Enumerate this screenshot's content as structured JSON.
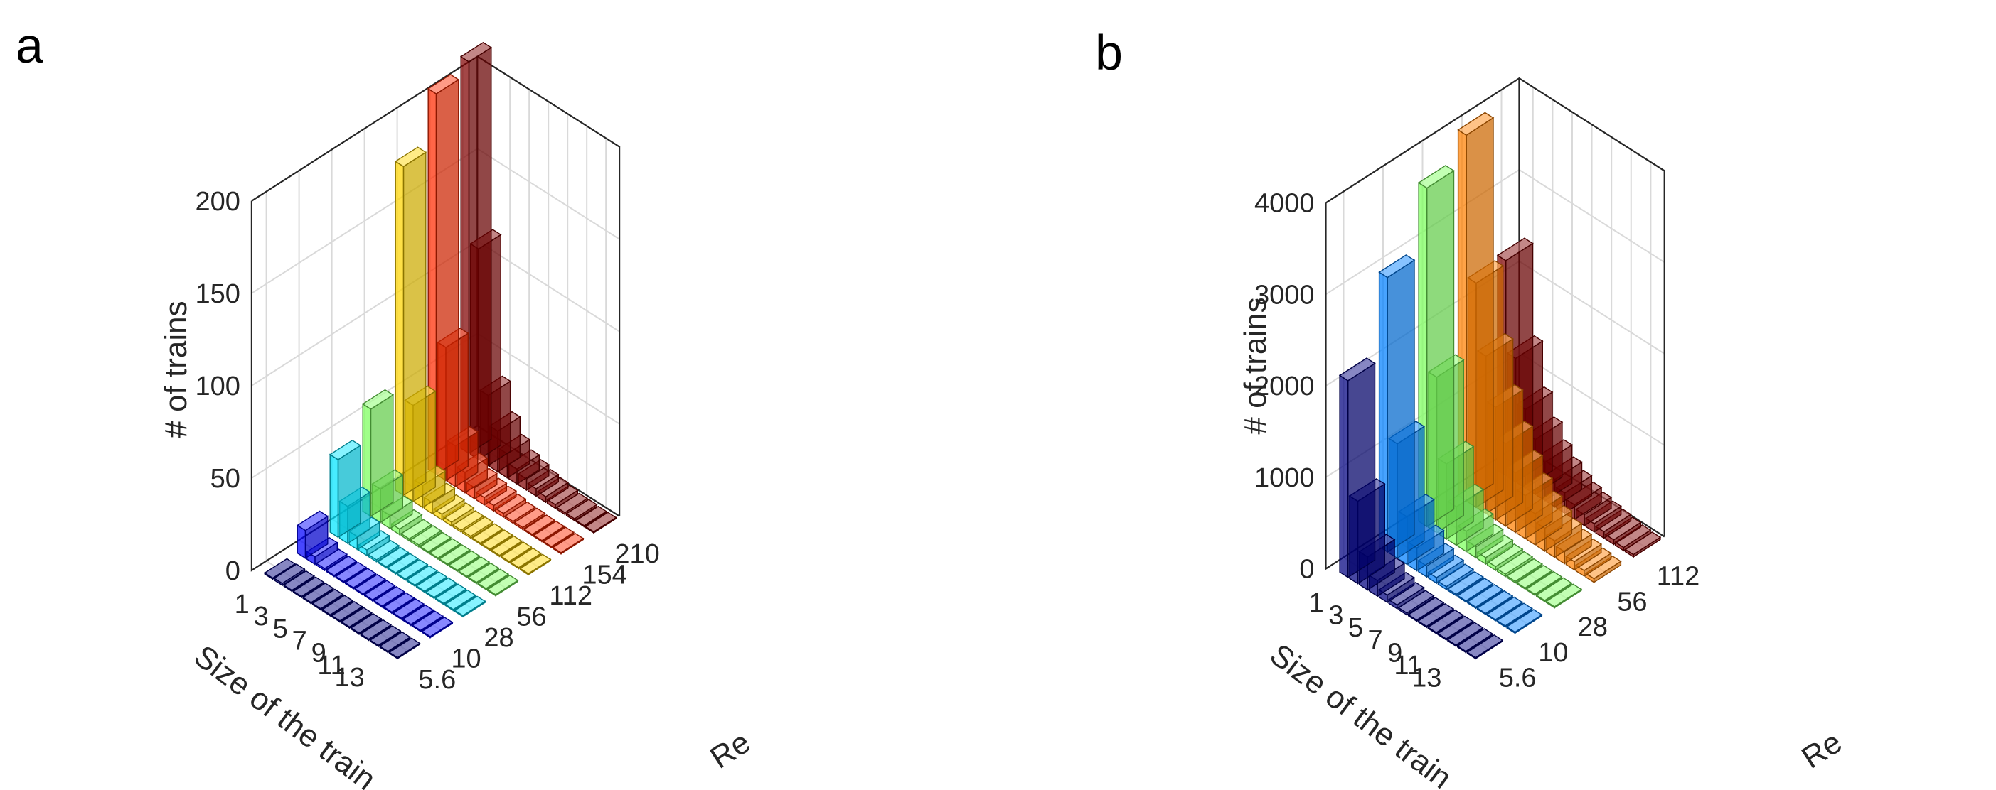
{
  "figure": {
    "panel_labels": [
      "a",
      "b"
    ]
  },
  "chart_data": [
    {
      "panel": "a",
      "type": "bar3d",
      "title": "",
      "xlabel": "Size of the train",
      "ylabel": "Re",
      "zlabel": "# of trains",
      "x_ticks": [
        "1",
        "3",
        "5",
        "7",
        "9",
        "11",
        "13"
      ],
      "re_ticks": [
        "5.6",
        "10",
        "28",
        "56",
        "112",
        "154",
        "210"
      ],
      "zlim": [
        0,
        200
      ],
      "z_ticks": [
        0,
        50,
        100,
        150,
        200
      ],
      "x": [
        1,
        2,
        3,
        4,
        5,
        6,
        7,
        8,
        9,
        10,
        11,
        12,
        13,
        14
      ],
      "series": [
        {
          "name": "5.6",
          "color": "#000080",
          "values": [
            0,
            1,
            0,
            0,
            0,
            0,
            0,
            0,
            0,
            0,
            0,
            0,
            0,
            0
          ]
        },
        {
          "name": "10",
          "color": "#0000FF",
          "values": [
            15,
            4,
            1,
            0,
            0,
            0,
            0,
            0,
            0,
            0,
            0,
            0,
            0,
            0
          ]
        },
        {
          "name": "28",
          "color": "#00E5FF",
          "values": [
            42,
            20,
            7,
            3,
            1,
            0,
            0,
            0,
            0,
            0,
            0,
            0,
            0,
            0
          ]
        },
        {
          "name": "56",
          "color": "#7CFF5C",
          "values": [
            58,
            18,
            7,
            3,
            1,
            1,
            0,
            0,
            0,
            0,
            0,
            0,
            0,
            0
          ]
        },
        {
          "name": "112",
          "color": "#FFD500",
          "values": [
            178,
            52,
            12,
            6,
            3,
            2,
            1,
            1,
            0,
            0,
            0,
            0,
            0,
            0
          ]
        },
        {
          "name": "154",
          "color": "#FF2A00",
          "values": [
            206,
            72,
            22,
            11,
            6,
            4,
            3,
            2,
            1,
            1,
            0,
            0,
            0,
            0
          ]
        },
        {
          "name": "210",
          "color": "#800000",
          "values": [
            212,
            114,
            38,
            22,
            13,
            8,
            6,
            4,
            3,
            2,
            1,
            1,
            0,
            0
          ]
        }
      ]
    },
    {
      "panel": "b",
      "type": "bar3d",
      "title": "",
      "xlabel": "Size of the train",
      "ylabel": "Re",
      "zlabel": "# of trains",
      "x_ticks": [
        "1",
        "3",
        "5",
        "7",
        "9",
        "11",
        "13"
      ],
      "re_ticks": [
        "5.6",
        "10",
        "28",
        "56",
        "112"
      ],
      "zlim": [
        0,
        4000
      ],
      "z_ticks": [
        0,
        1000,
        2000,
        3000,
        4000
      ],
      "x": [
        1,
        2,
        3,
        4,
        5,
        6,
        7,
        8,
        9,
        10,
        11,
        12,
        13,
        14
      ],
      "series": [
        {
          "name": "5.6",
          "color": "#000080",
          "values": [
            2150,
            900,
            360,
            170,
            80,
            40,
            20,
            10,
            5,
            3,
            2,
            1,
            1,
            0
          ]
        },
        {
          "name": "10",
          "color": "#0080FF",
          "values": [
            3000,
            1250,
            520,
            250,
            120,
            60,
            30,
            15,
            8,
            5,
            3,
            2,
            1,
            1
          ]
        },
        {
          "name": "28",
          "color": "#7CFF5C",
          "values": [
            3700,
            1700,
            820,
            420,
            220,
            120,
            70,
            40,
            25,
            15,
            10,
            6,
            4,
            2
          ]
        },
        {
          "name": "56",
          "color": "#FF7F00",
          "values": [
            4000,
            2450,
            1720,
            1230,
            900,
            650,
            470,
            340,
            250,
            180,
            130,
            90,
            60,
            40
          ]
        },
        {
          "name": "112",
          "color": "#800000",
          "values": [
            2350,
            1350,
            860,
            600,
            420,
            300,
            220,
            160,
            120,
            90,
            70,
            50,
            35,
            25
          ]
        }
      ]
    }
  ]
}
